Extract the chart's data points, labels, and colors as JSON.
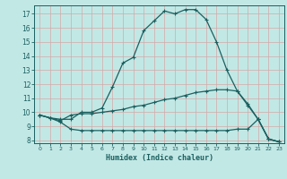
{
  "xlabel": "Humidex (Indice chaleur)",
  "bg_color": "#c2e8e5",
  "grid_color": "#d4a8a8",
  "line_color": "#1a6060",
  "xlim": [
    -0.5,
    23.5
  ],
  "ylim": [
    7.8,
    17.6
  ],
  "yticks": [
    8,
    9,
    10,
    11,
    12,
    13,
    14,
    15,
    16,
    17
  ],
  "xticks": [
    0,
    1,
    2,
    3,
    4,
    5,
    6,
    7,
    8,
    9,
    10,
    11,
    12,
    13,
    14,
    15,
    16,
    17,
    18,
    19,
    20,
    21,
    22,
    23
  ],
  "line1_x": [
    0,
    1,
    2,
    3,
    4,
    5,
    6,
    7,
    8,
    9,
    10,
    11,
    12,
    13,
    14,
    15,
    16,
    17,
    18,
    19,
    20,
    21,
    22,
    23
  ],
  "line1_y": [
    9.8,
    9.6,
    9.5,
    9.5,
    10.0,
    10.0,
    10.3,
    11.8,
    13.5,
    13.9,
    15.8,
    16.5,
    17.2,
    17.0,
    17.3,
    17.3,
    16.6,
    15.0,
    13.0,
    11.5,
    10.6,
    9.5,
    8.1,
    7.9
  ],
  "line2_x": [
    0,
    1,
    2,
    3,
    4,
    5,
    6,
    7,
    8,
    9,
    10,
    11,
    12,
    13,
    14,
    15,
    16,
    17,
    18,
    19,
    20,
    21,
    22,
    23
  ],
  "line2_y": [
    9.8,
    9.6,
    9.3,
    8.8,
    8.7,
    8.7,
    8.7,
    8.7,
    8.7,
    8.7,
    8.7,
    8.7,
    8.7,
    8.7,
    8.7,
    8.7,
    8.7,
    8.7,
    8.7,
    8.8,
    8.8,
    9.5,
    8.1,
    7.9
  ],
  "line3_x": [
    0,
    1,
    2,
    3,
    4,
    5,
    6,
    7,
    8,
    9,
    10,
    11,
    12,
    13,
    14,
    15,
    16,
    17,
    18,
    19,
    20,
    21,
    22,
    23
  ],
  "line3_y": [
    9.8,
    9.6,
    9.4,
    9.8,
    9.9,
    9.9,
    10.0,
    10.1,
    10.2,
    10.4,
    10.5,
    10.7,
    10.9,
    11.0,
    11.2,
    11.4,
    11.5,
    11.6,
    11.6,
    11.5,
    10.5,
    9.5,
    8.1,
    7.9
  ]
}
